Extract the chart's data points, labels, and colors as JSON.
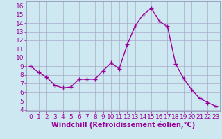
{
  "x": [
    0,
    1,
    2,
    3,
    4,
    5,
    6,
    7,
    8,
    9,
    10,
    11,
    12,
    13,
    14,
    15,
    16,
    17,
    18,
    19,
    20,
    21,
    22,
    23
  ],
  "y": [
    9.0,
    8.3,
    7.7,
    6.8,
    6.5,
    6.6,
    7.5,
    7.5,
    7.5,
    8.5,
    9.4,
    8.7,
    11.5,
    13.7,
    15.0,
    15.7,
    14.2,
    13.6,
    9.3,
    7.6,
    6.3,
    5.3,
    4.8,
    4.4
  ],
  "line_color": "#990099",
  "marker": "+",
  "marker_size": 4,
  "marker_lw": 1.0,
  "bg_color": "#cde8f0",
  "grid_color": "#aaaacc",
  "xlabel": "Windchill (Refroidissement éolien,°C)",
  "ylabel": "",
  "xlim": [
    -0.5,
    23.5
  ],
  "ylim": [
    3.8,
    16.5
  ],
  "yticks": [
    4,
    5,
    6,
    7,
    8,
    9,
    10,
    11,
    12,
    13,
    14,
    15,
    16
  ],
  "xticks": [
    0,
    1,
    2,
    3,
    4,
    5,
    6,
    7,
    8,
    9,
    10,
    11,
    12,
    13,
    14,
    15,
    16,
    17,
    18,
    19,
    20,
    21,
    22,
    23
  ],
  "tick_label_color": "#990099",
  "xlabel_color": "#990099",
  "font_size": 6.5,
  "xlabel_fontsize": 7,
  "line_width": 1.0,
  "spine_color": "#8888aa"
}
